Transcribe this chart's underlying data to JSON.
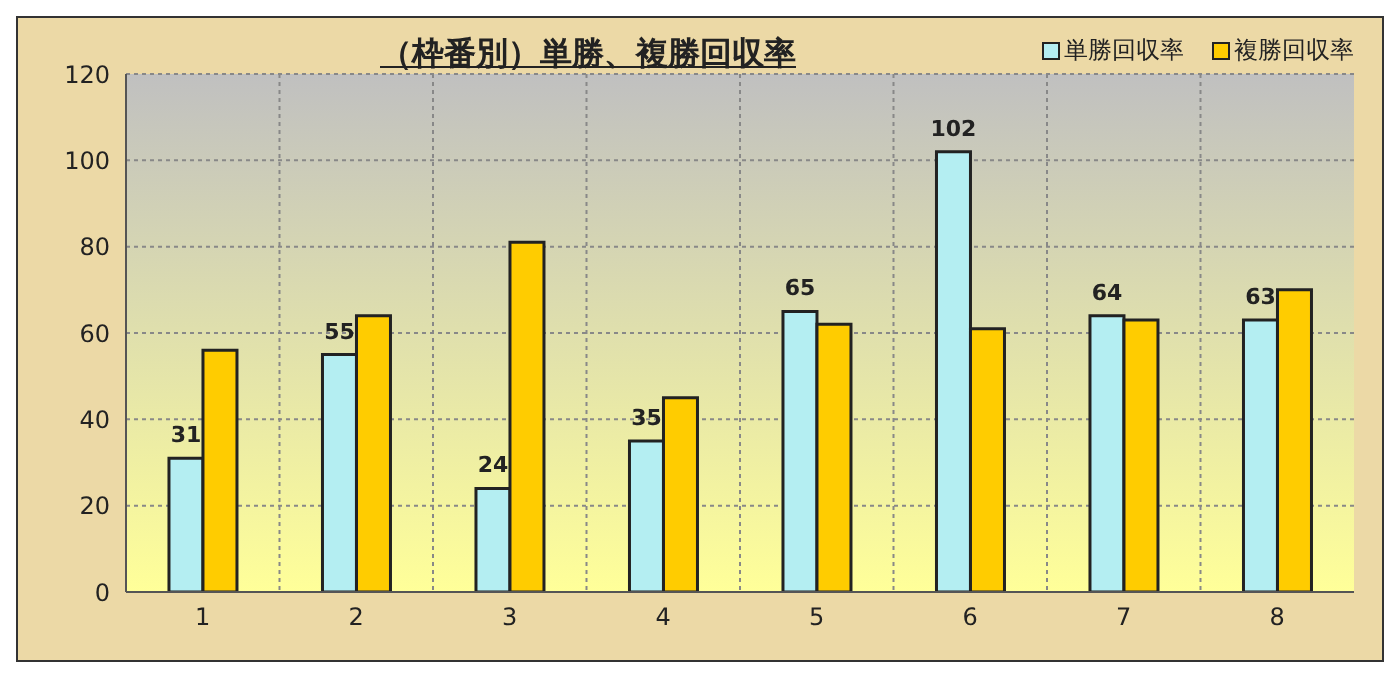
{
  "chart_data": {
    "type": "bar",
    "title": "（枠番別）単勝、複勝回収率",
    "categories": [
      "1",
      "2",
      "3",
      "4",
      "5",
      "6",
      "7",
      "8"
    ],
    "series": [
      {
        "name": "単勝回収率",
        "color": "#b4eef2",
        "values": [
          31,
          55,
          24,
          35,
          65,
          102,
          64,
          63
        ],
        "value_labels": [
          "31",
          "55",
          "24",
          "35",
          "65",
          "102",
          "64",
          "63"
        ]
      },
      {
        "name": "複勝回収率",
        "color": "#ffcc00",
        "values": [
          56,
          64,
          81,
          45,
          62,
          61,
          63,
          70
        ]
      }
    ],
    "ylim": [
      0,
      120
    ],
    "yticks": [
      0,
      20,
      40,
      60,
      80,
      100,
      120
    ],
    "grid": true,
    "legend": "top right"
  }
}
